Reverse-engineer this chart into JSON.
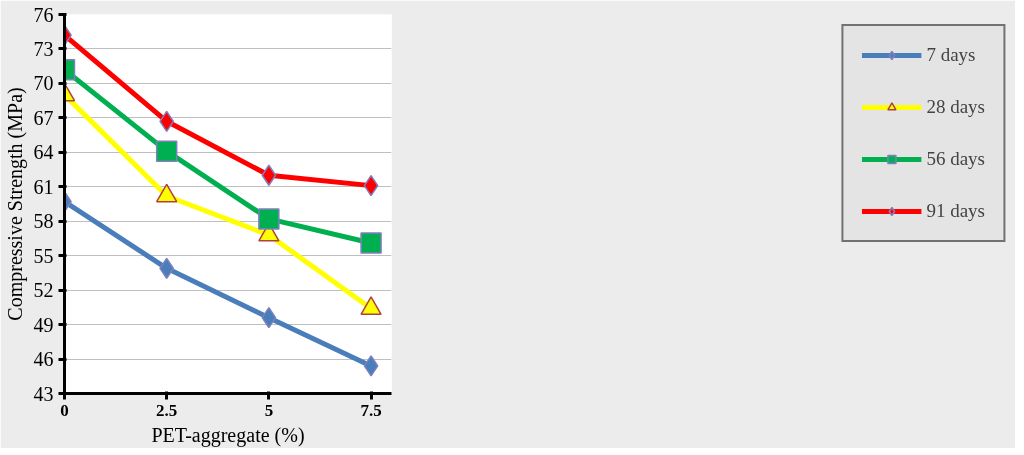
{
  "chart_data": {
    "type": "line",
    "xlabel": "PET-aggregate (%)",
    "ylabel": "Compressive Strength (MPa)",
    "x": [
      0,
      2.5,
      5,
      7.5
    ],
    "xlim": [
      0,
      8
    ],
    "xticks": [
      0,
      2.5,
      5,
      7.5
    ],
    "ylim": [
      43,
      76
    ],
    "yticks": [
      43,
      46,
      49,
      52,
      55,
      58,
      61,
      64,
      67,
      70,
      73,
      76
    ],
    "grid": "y",
    "legend": "right",
    "series": [
      {
        "name": "7 days",
        "color": "#4a7ebb",
        "marker": "diamond",
        "values": [
          59.7,
          53.9,
          49.6,
          45.4
        ]
      },
      {
        "name": "28 days",
        "color": "#ffff00",
        "marker": "triangle",
        "values": [
          69.0,
          60.2,
          56.8,
          50.4
        ]
      },
      {
        "name": "56 days",
        "color": "#00b050",
        "marker": "square",
        "values": [
          71.2,
          64.1,
          58.2,
          56.1
        ]
      },
      {
        "name": "91 days",
        "color": "#ff0000",
        "marker": "diamond",
        "values": [
          74.2,
          66.7,
          62.0,
          61.1
        ]
      }
    ]
  }
}
